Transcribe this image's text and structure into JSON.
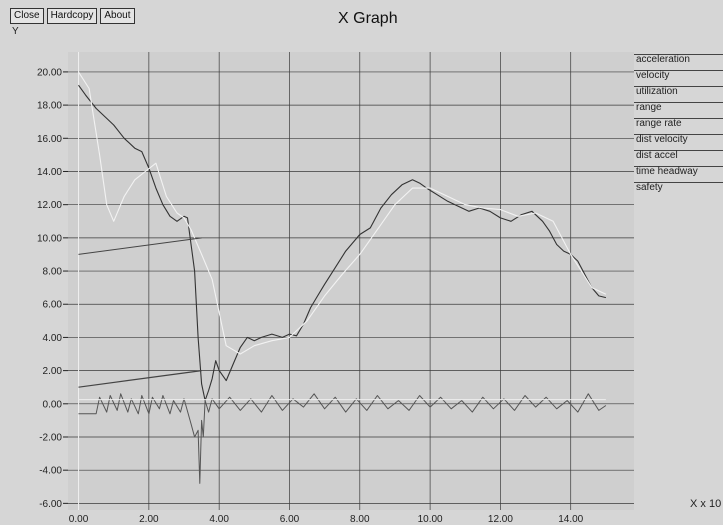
{
  "toolbar": {
    "close_label": "Close",
    "hardcopy_label": "Hardcopy",
    "about_label": "About"
  },
  "chart_data": {
    "type": "line",
    "title": "X Graph",
    "ylabel": "Y",
    "xunit_label": "X x 10",
    "xlim": [
      -0.3,
      15.8
    ],
    "ylim": [
      -6.4,
      21.2
    ],
    "grid": true,
    "legend_position": "right",
    "x_ticks": [
      "0.00",
      "2.00",
      "4.00",
      "6.00",
      "8.00",
      "10.00",
      "12.00",
      "14.00"
    ],
    "y_ticks": [
      "-6.00",
      "-4.00",
      "-2.00",
      "0.00",
      "2.00",
      "4.00",
      "6.00",
      "8.00",
      "10.00",
      "12.00",
      "14.00",
      "16.00",
      "18.00",
      "20.00"
    ],
    "legend": [
      "acceleration",
      "velocity",
      "utilization",
      "range",
      "range rate",
      "dist velocity",
      "dist accel",
      "time headway",
      "safety"
    ],
    "series": [
      {
        "name": "range",
        "color": "#333333",
        "x": [
          0,
          0.2,
          0.5,
          0.8,
          1.0,
          1.3,
          1.6,
          1.8,
          2.0,
          2.2,
          2.4,
          2.6,
          2.8,
          3.0,
          3.1,
          3.3,
          3.4,
          3.5,
          3.6,
          3.7,
          3.8,
          3.9,
          4.0,
          4.2,
          4.4,
          4.6,
          4.8,
          5.0,
          5.2,
          5.5,
          5.8,
          6.0,
          6.2,
          6.4,
          6.6,
          6.8,
          7.0,
          7.3,
          7.6,
          8.0,
          8.3,
          8.6,
          8.9,
          9.2,
          9.5,
          9.7,
          9.9,
          10.2,
          10.5,
          10.8,
          11.1,
          11.4,
          11.7,
          12.0,
          12.3,
          12.6,
          12.9,
          13.2,
          13.4,
          13.6,
          13.8,
          14.0,
          14.2,
          14.4,
          14.6,
          14.8,
          15.0
        ],
        "y": [
          19.2,
          18.6,
          17.8,
          17.2,
          16.8,
          16.0,
          15.4,
          15.2,
          14.2,
          13.0,
          12.0,
          11.3,
          11.0,
          11.3,
          11.2,
          8.0,
          4.0,
          1.2,
          0.2,
          0.8,
          1.5,
          2.6,
          2.0,
          1.4,
          2.4,
          3.4,
          4.0,
          3.8,
          4.0,
          4.2,
          4.0,
          4.2,
          4.1,
          4.8,
          5.8,
          6.5,
          7.2,
          8.2,
          9.2,
          10.2,
          10.6,
          11.8,
          12.6,
          13.2,
          13.5,
          13.3,
          13.0,
          12.6,
          12.2,
          11.9,
          11.6,
          11.8,
          11.6,
          11.2,
          11.0,
          11.4,
          11.6,
          11.0,
          10.4,
          9.6,
          9.2,
          9.0,
          8.6,
          7.8,
          7.0,
          6.5,
          6.4
        ]
      },
      {
        "name": "range rate",
        "color": "#f2f2f2",
        "x": [
          0,
          0.3,
          0.6,
          0.8,
          1.0,
          1.3,
          1.6,
          1.9,
          2.2,
          2.5,
          2.8,
          3.0,
          3.2,
          3.5,
          3.8,
          4.2,
          4.6,
          5.0,
          5.5,
          6.0,
          6.5,
          7.0,
          7.5,
          8.0,
          8.5,
          9.0,
          9.5,
          10.0,
          10.5,
          11.0,
          11.5,
          12.0,
          12.5,
          13.0,
          13.5,
          14.0,
          14.3,
          14.6,
          15.0
        ],
        "y": [
          20.0,
          19.0,
          15.0,
          12.0,
          11.0,
          12.5,
          13.5,
          14.0,
          14.5,
          12.5,
          11.5,
          11.2,
          10.5,
          9.0,
          7.5,
          3.5,
          3.0,
          3.5,
          3.8,
          4.0,
          5.0,
          6.5,
          7.8,
          9.0,
          10.5,
          12.0,
          13.0,
          13.0,
          12.5,
          12.0,
          11.8,
          11.7,
          11.3,
          11.5,
          11.0,
          9.0,
          8.0,
          7.0,
          6.6
        ]
      },
      {
        "name": "dist velocity",
        "color": "#444444",
        "x": [
          0,
          3.5
        ],
        "y": [
          9.0,
          10.0
        ]
      },
      {
        "name": "dist accel",
        "color": "#444444",
        "x": [
          0,
          3.5
        ],
        "y": [
          1.0,
          2.0
        ]
      },
      {
        "name": "acceleration",
        "color": "#555555",
        "x": [
          0,
          0.5,
          0.6,
          0.8,
          0.9,
          1.1,
          1.2,
          1.4,
          1.5,
          1.7,
          1.8,
          2.0,
          2.1,
          2.3,
          2.4,
          2.6,
          2.7,
          2.9,
          3.0,
          3.2,
          3.3,
          3.4,
          3.45,
          3.5,
          3.55,
          3.6,
          3.7,
          3.8,
          4.0,
          4.3,
          4.6,
          4.9,
          5.2,
          5.5,
          5.8,
          6.1,
          6.4,
          6.7,
          7.0,
          7.3,
          7.6,
          7.9,
          8.2,
          8.5,
          8.8,
          9.1,
          9.4,
          9.7,
          10.0,
          10.3,
          10.6,
          10.9,
          11.2,
          11.5,
          11.8,
          12.1,
          12.4,
          12.7,
          13.0,
          13.3,
          13.6,
          13.9,
          14.2,
          14.5,
          14.8,
          15.0
        ],
        "y": [
          -0.6,
          -0.6,
          0.4,
          -0.5,
          0.5,
          -0.4,
          0.6,
          -0.5,
          0.3,
          -0.6,
          0.5,
          -0.6,
          0.4,
          -0.3,
          0.5,
          -0.6,
          0.2,
          -0.5,
          0.3,
          -1.2,
          -2.0,
          -1.6,
          -4.8,
          -1.0,
          -2.0,
          0.2,
          -0.5,
          0.3,
          -0.3,
          0.4,
          -0.4,
          0.3,
          -0.5,
          0.5,
          -0.4,
          0.3,
          -0.2,
          0.6,
          -0.3,
          0.4,
          -0.5,
          0.3,
          -0.4,
          0.5,
          -0.3,
          0.2,
          -0.4,
          0.5,
          -0.2,
          0.4,
          -0.3,
          0.2,
          -0.5,
          0.4,
          -0.3,
          0.3,
          -0.4,
          0.5,
          -0.2,
          0.4,
          -0.3,
          0.2,
          -0.5,
          0.6,
          -0.4,
          -0.1
        ]
      },
      {
        "name": "velocity",
        "color": "#eeeeee",
        "x": [
          0,
          15.0
        ],
        "y": [
          0.25,
          0.25
        ]
      }
    ]
  }
}
